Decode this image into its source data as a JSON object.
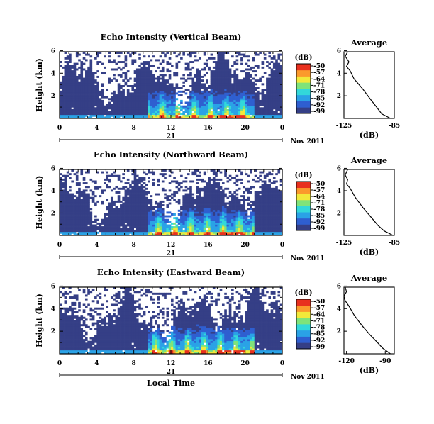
{
  "figure": {
    "date_label": "Nov 2011",
    "day_label": "21",
    "xlabel": "Local Time",
    "ylabel": "Height (km)",
    "colorbar_unit": "(dB)",
    "colorbar_ticks": [
      "-50",
      "-57",
      "-64",
      "-71",
      "-78",
      "-85",
      "-92",
      "-99"
    ],
    "colors": {
      "background": "#ffffff",
      "no_echo": "#353f86",
      "scale": [
        "#353f86",
        "#2f5fd0",
        "#2aa2e6",
        "#32d8da",
        "#7fe37a",
        "#f2e93a",
        "#fb9a2c",
        "#e8301e"
      ],
      "axis_line": "#000000"
    }
  },
  "chart_data": [
    {
      "type": "heatmap",
      "title": "Echo Intensity (Vertical Beam)",
      "x_ticks": [
        "0",
        "4",
        "8",
        "12",
        "16",
        "20",
        "0"
      ],
      "y_ticks": [
        "6",
        "4",
        "2"
      ],
      "xlim_hours": [
        0,
        24
      ],
      "ylim_km": [
        0.0,
        5.9
      ],
      "zlim_dB": [
        -99,
        -50
      ],
      "profile": {
        "title": "Average",
        "xlabel": "(dB)",
        "x_ticks": [
          "-125",
          "-85"
        ],
        "xlim_dB": [
          -125,
          -85
        ],
        "y_ticks": [
          "6",
          "4",
          "2"
        ],
        "points_dB": [
          [
            -122,
            5.9
          ],
          [
            -124,
            5.5
          ],
          [
            -121,
            5.0
          ],
          [
            -123,
            4.6
          ],
          [
            -120,
            4.2
          ],
          [
            -117,
            3.5
          ],
          [
            -110,
            2.6
          ],
          [
            -104,
            1.7
          ],
          [
            -99,
            1.0
          ],
          [
            -95,
            0.4
          ],
          [
            -88,
            0.0
          ]
        ]
      }
    },
    {
      "type": "heatmap",
      "title": "Echo Intensity (Northward Beam)",
      "x_ticks": [
        "0",
        "4",
        "8",
        "12",
        "16",
        "20",
        "0"
      ],
      "y_ticks": [
        "6",
        "4",
        "2"
      ],
      "xlim_hours": [
        0,
        24
      ],
      "ylim_km": [
        0.0,
        5.9
      ],
      "zlim_dB": [
        -99,
        -50
      ],
      "profile": {
        "title": "Average",
        "xlabel": "(dB)",
        "x_ticks": [
          "-125",
          "-85"
        ],
        "xlim_dB": [
          -125,
          -85
        ],
        "y_ticks": [
          "6",
          "4",
          "2"
        ],
        "points_dB": [
          [
            -122,
            5.9
          ],
          [
            -124,
            5.4
          ],
          [
            -122,
            5.0
          ],
          [
            -123,
            4.6
          ],
          [
            -120,
            4.2
          ],
          [
            -116,
            3.4
          ],
          [
            -110,
            2.5
          ],
          [
            -104,
            1.7
          ],
          [
            -98,
            0.9
          ],
          [
            -93,
            0.4
          ],
          [
            -86,
            0.0
          ]
        ]
      }
    },
    {
      "type": "heatmap",
      "title": "Echo Intensity (Eastward Beam)",
      "x_ticks": [
        "0",
        "4",
        "8",
        "12",
        "16",
        "20",
        "0"
      ],
      "y_ticks": [
        "6",
        "4",
        "2"
      ],
      "xlim_hours": [
        0,
        24
      ],
      "ylim_km": [
        0.0,
        5.9
      ],
      "zlim_dB": [
        -99,
        -50
      ],
      "profile": {
        "title": "Average",
        "xlabel": "(dB)",
        "x_ticks": [
          "-120",
          "-90"
        ],
        "xlim_dB": [
          -122,
          -83
        ],
        "y_ticks": [
          "6",
          "4",
          "2"
        ],
        "points_dB": [
          [
            -121,
            5.9
          ],
          [
            -120,
            5.5
          ],
          [
            -122,
            5.1
          ],
          [
            -121,
            4.7
          ],
          [
            -118,
            4.2
          ],
          [
            -114,
            3.4
          ],
          [
            -108,
            2.5
          ],
          [
            -102,
            1.7
          ],
          [
            -96,
            1.0
          ],
          [
            -92,
            0.5
          ],
          [
            -86,
            0.0
          ]
        ]
      }
    }
  ]
}
